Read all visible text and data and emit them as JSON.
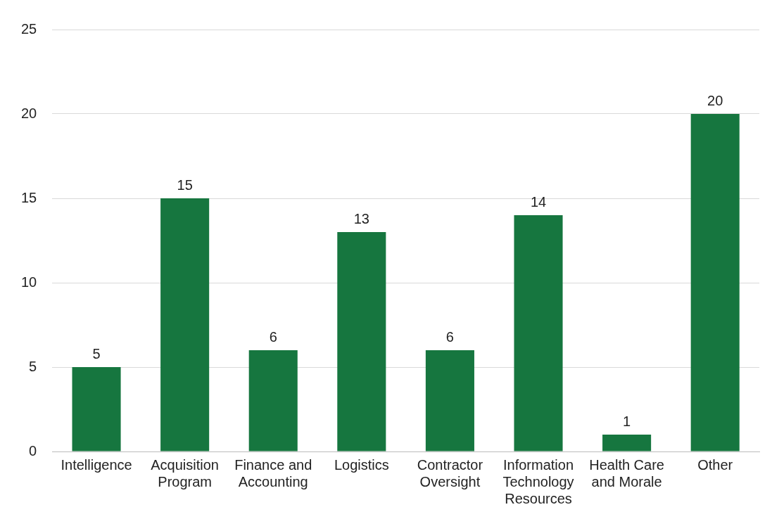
{
  "chart_data": {
    "type": "bar",
    "categories": [
      "Intelligence",
      "Acquisition Program",
      "Finance and Accounting",
      "Logistics",
      "Contractor Oversight",
      "Information Technology Resources",
      "Health Care and Morale",
      "Other"
    ],
    "values": [
      5,
      15,
      6,
      13,
      6,
      14,
      1,
      20
    ],
    "color": "#16763f",
    "ylim": [
      0,
      25
    ],
    "yticks": [
      0,
      5,
      10,
      15,
      20,
      25
    ],
    "grid": "y",
    "data_labels": true,
    "legend": false
  }
}
